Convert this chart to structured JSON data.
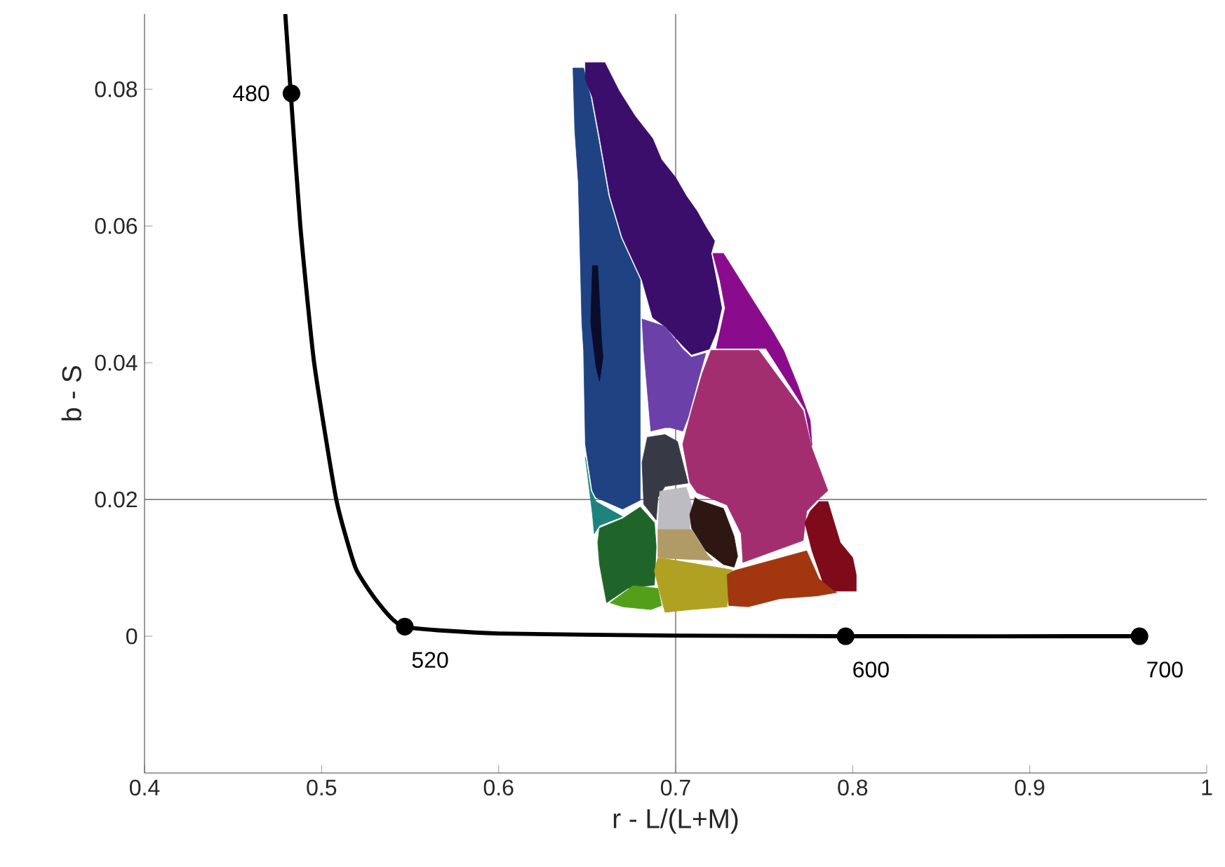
{
  "chart_data": {
    "type": "line",
    "xlabel": "r - L/(L+M)",
    "ylabel": "b - S",
    "xlim": [
      0.4,
      1.0
    ],
    "ylim": [
      -0.02,
      0.091
    ],
    "xticks": [
      0.4,
      0.5,
      0.6,
      0.7,
      0.8,
      0.9,
      1
    ],
    "yticks": [
      0,
      0.02,
      0.04,
      0.06,
      0.08
    ],
    "grid": false,
    "ref_lines": [
      {
        "axis": "x",
        "value": 0.7,
        "color": "#808080"
      },
      {
        "axis": "y",
        "value": 0.02,
        "color": "#808080"
      }
    ],
    "annotations": [
      {
        "text": "480",
        "x": 0.483,
        "y": 0.0794
      },
      {
        "text": "520",
        "x": 0.547,
        "y": 0.0014
      },
      {
        "text": "600",
        "x": 0.796,
        "y": 0
      },
      {
        "text": "700",
        "x": 0.962,
        "y": 0
      }
    ],
    "series": [
      {
        "type": "area",
        "color": "#1f4283",
        "x": [
          0.642,
          0.648,
          0.652,
          0.656,
          0.662,
          0.669,
          0.68,
          0.68,
          0.67,
          0.655,
          0.653,
          0.649,
          0.648,
          0.647,
          0.646,
          0.645,
          0.643
        ],
        "values": [
          0.0831,
          0.0831,
          0.0788,
          0.0732,
          0.0644,
          0.0583,
          0.0521,
          0.0199,
          0.0186,
          0.0203,
          0.0213,
          0.0281,
          0.0418,
          0.0459,
          0.0562,
          0.0665,
          0.0741
        ]
      },
      {
        "type": "area",
        "color": "#3a0e6a",
        "x": [
          0.649,
          0.66,
          0.668,
          0.677,
          0.687,
          0.692,
          0.7,
          0.706,
          0.712,
          0.717,
          0.722,
          0.72,
          0.723,
          0.726,
          0.723,
          0.719,
          0.709,
          0.704,
          0.694,
          0.687,
          0.681,
          0.67,
          0.663,
          0.657,
          0.653,
          0.649
        ],
        "values": [
          0.0839,
          0.0839,
          0.0798,
          0.0761,
          0.0728,
          0.0697,
          0.0671,
          0.0644,
          0.0622,
          0.0599,
          0.0578,
          0.056,
          0.0521,
          0.048,
          0.0445,
          0.042,
          0.0412,
          0.0425,
          0.0453,
          0.0466,
          0.0521,
          0.0583,
          0.0644,
          0.0732,
          0.0788,
          0.0814
        ]
      },
      {
        "type": "area",
        "color": "#0b0c2b",
        "x": [
          0.653,
          0.656,
          0.658,
          0.659,
          0.657,
          0.655,
          0.652
        ],
        "values": [
          0.0542,
          0.0542,
          0.0439,
          0.0408,
          0.0373,
          0.0394,
          0.0459
        ]
      },
      {
        "type": "area",
        "color": "#6b40a8",
        "x": [
          0.681,
          0.694,
          0.704,
          0.709,
          0.717,
          0.713,
          0.707,
          0.704,
          0.7,
          0.697,
          0.694,
          0.686,
          0.682
        ],
        "values": [
          0.0464,
          0.0453,
          0.042,
          0.0408,
          0.0414,
          0.0377,
          0.032,
          0.03,
          0.0303,
          0.0305,
          0.0305,
          0.03,
          0.0418
        ]
      },
      {
        "type": "area",
        "color": "#8a0c8c",
        "x": [
          0.721,
          0.727,
          0.735,
          0.744,
          0.755,
          0.761,
          0.769,
          0.776,
          0.777,
          0.773,
          0.751,
          0.733,
          0.723,
          0.725,
          0.728,
          0.725
        ],
        "values": [
          0.056,
          0.056,
          0.0527,
          0.049,
          0.0445,
          0.0418,
          0.0367,
          0.0316,
          0.0279,
          0.0332,
          0.0421,
          0.0421,
          0.0421,
          0.0445,
          0.048,
          0.0521
        ]
      },
      {
        "type": "area",
        "color": "#a22e70",
        "x": [
          0.72,
          0.747,
          0.772,
          0.777,
          0.786,
          0.78,
          0.774,
          0.772,
          0.738,
          0.737,
          0.729,
          0.712,
          0.708,
          0.704,
          0.709,
          0.715
        ],
        "values": [
          0.0418,
          0.0418,
          0.033,
          0.0275,
          0.0213,
          0.0199,
          0.0183,
          0.014,
          0.0108,
          0.015,
          0.0192,
          0.021,
          0.0225,
          0.0281,
          0.033,
          0.0384
        ]
      },
      {
        "type": "area",
        "color": "#373a45",
        "x": [
          0.684,
          0.694,
          0.701,
          0.705,
          0.707,
          0.694,
          0.69,
          0.689,
          0.686,
          0.682,
          0.681
        ],
        "values": [
          0.0291,
          0.0295,
          0.0285,
          0.0244,
          0.0224,
          0.0219,
          0.0203,
          0.017,
          0.018,
          0.0193,
          0.0254
        ]
      },
      {
        "type": "area",
        "color": "#bcbcc2",
        "x": [
          0.691,
          0.706,
          0.709,
          0.708,
          0.708,
          0.69
        ],
        "values": [
          0.0212,
          0.0218,
          0.0193,
          0.0162,
          0.0156,
          0.0156
        ]
      },
      {
        "type": "area",
        "color": "#b09a66",
        "x": [
          0.69,
          0.709,
          0.718,
          0.721,
          0.694,
          0.69
        ],
        "values": [
          0.0156,
          0.0156,
          0.0119,
          0.0111,
          0.0114,
          0.0116
        ]
      },
      {
        "type": "area",
        "color": "#2e1612",
        "x": [
          0.711,
          0.713,
          0.727,
          0.733,
          0.735,
          0.733,
          0.727,
          0.717,
          0.709,
          0.708
        ],
        "values": [
          0.0203,
          0.0199,
          0.0187,
          0.0146,
          0.0117,
          0.0101,
          0.0105,
          0.0125,
          0.0158,
          0.0178
        ]
      },
      {
        "type": "area",
        "color": "#1c847c",
        "x": [
          0.649,
          0.652,
          0.655,
          0.67,
          0.663,
          0.657,
          0.654,
          0.653
        ],
        "values": [
          0.0262,
          0.0213,
          0.0197,
          0.0175,
          0.0168,
          0.0162,
          0.015,
          0.0178
        ]
      },
      {
        "type": "area",
        "color": "#1f652a",
        "x": [
          0.657,
          0.67,
          0.68,
          0.688,
          0.689,
          0.688,
          0.673,
          0.661,
          0.657,
          0.656
        ],
        "values": [
          0.0158,
          0.0172,
          0.0189,
          0.0166,
          0.0131,
          0.0075,
          0.007,
          0.0049,
          0.0105,
          0.0137
        ]
      },
      {
        "type": "area",
        "color": "#52a019",
        "x": [
          0.663,
          0.676,
          0.69,
          0.692,
          0.686,
          0.67
        ],
        "values": [
          0.0049,
          0.0074,
          0.007,
          0.0045,
          0.0039,
          0.0043
        ]
      },
      {
        "type": "area",
        "color": "#b0a122",
        "x": [
          0.69,
          0.709,
          0.732,
          0.729,
          0.709,
          0.694,
          0.691,
          0.688
        ],
        "values": [
          0.0115,
          0.0107,
          0.0097,
          0.0043,
          0.0039,
          0.0035,
          0.0064,
          0.0096
        ]
      },
      {
        "type": "area",
        "color": "#a1360f",
        "x": [
          0.733,
          0.774,
          0.781,
          0.791,
          0.78,
          0.759,
          0.741,
          0.73,
          0.729
        ],
        "values": [
          0.0096,
          0.0125,
          0.0084,
          0.0064,
          0.0059,
          0.0055,
          0.0043,
          0.0045,
          0.009
        ]
      },
      {
        "type": "area",
        "color": "#7e0a1a",
        "x": [
          0.781,
          0.786,
          0.793,
          0.8,
          0.802,
          0.802,
          0.79,
          0.783,
          0.777,
          0.773,
          0.776
        ],
        "values": [
          0.0197,
          0.0197,
          0.0137,
          0.0115,
          0.009,
          0.0066,
          0.0066,
          0.008,
          0.0125,
          0.0166,
          0.0183
        ]
      },
      {
        "color": "#000000",
        "marker": "none",
        "x": [
          0.4795,
          0.4826,
          0.488,
          0.4958,
          0.5083,
          0.5192,
          0.5317,
          0.5465,
          0.6,
          0.7,
          0.8,
          0.962
        ],
        "values": [
          0.091,
          0.0794,
          0.06,
          0.04,
          0.02,
          0.01,
          0.005,
          0.0014,
          0.0004,
          0.0001,
          0,
          0
        ]
      },
      {
        "type": "scatter",
        "color": "#000000",
        "marker": "circle",
        "x": [
          0.483,
          0.547,
          0.796,
          0.962
        ],
        "values": [
          0.0794,
          0.0014,
          0,
          0
        ]
      }
    ]
  }
}
